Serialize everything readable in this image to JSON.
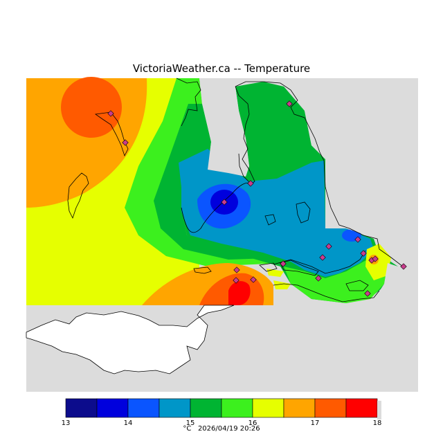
{
  "title": "VictoriaWeather.ca -- Temperature",
  "legend": {
    "unit": "°C",
    "timestamp": "2026/04/19 20:26",
    "ticks": [
      13,
      14,
      15,
      16,
      17,
      18
    ],
    "bins": [
      {
        "from": 13.0,
        "to": 13.5,
        "color": "#0c0c8c"
      },
      {
        "from": 13.5,
        "to": 14.0,
        "color": "#0000dd"
      },
      {
        "from": 14.0,
        "to": 14.5,
        "color": "#0a55ff"
      },
      {
        "from": 14.5,
        "to": 15.0,
        "color": "#0096c8"
      },
      {
        "from": 15.0,
        "to": 15.5,
        "color": "#00b432"
      },
      {
        "from": 15.5,
        "to": 16.0,
        "color": "#3cf01e"
      },
      {
        "from": 16.0,
        "to": 16.5,
        "color": "#e6ff00"
      },
      {
        "from": 16.5,
        "to": 17.0,
        "color": "#ffa500"
      },
      {
        "from": 17.0,
        "to": 17.5,
        "color": "#ff5a00"
      },
      {
        "from": 17.5,
        "to": 18.0,
        "color": "#ff0000"
      }
    ]
  },
  "colors": {
    "no_data": "#dcdcdc",
    "land_no_data": "#ffffff",
    "station_marker": "#c83c8c"
  }
}
